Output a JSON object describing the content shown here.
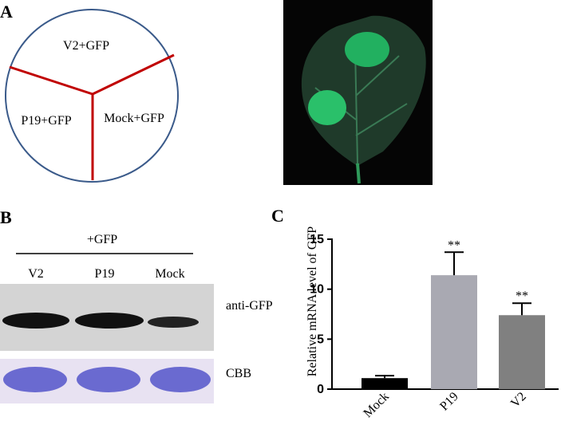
{
  "panel_a": {
    "label": "A",
    "sectors": [
      "V2+GFP",
      "P19+GFP",
      "Mock+GFP"
    ]
  },
  "panel_b": {
    "label": "B",
    "header": "+GFP",
    "lanes": [
      "V2",
      "P19",
      "Mock"
    ],
    "rows": [
      "anti-GFP",
      "CBB"
    ]
  },
  "chart_data": {
    "type": "bar",
    "label": "C",
    "ylabel": "Relative mRNA level of GFP",
    "categories": [
      "Mock",
      "P19",
      "V2"
    ],
    "values": [
      1.1,
      11.4,
      7.4
    ],
    "errors": [
      0.25,
      2.3,
      1.2
    ],
    "annotations": [
      null,
      "**",
      "**"
    ],
    "colors": [
      "#000000",
      "#a9a9b2",
      "#808080"
    ],
    "ylim": [
      0,
      15
    ],
    "yticks": [
      0,
      5,
      10,
      15
    ]
  }
}
